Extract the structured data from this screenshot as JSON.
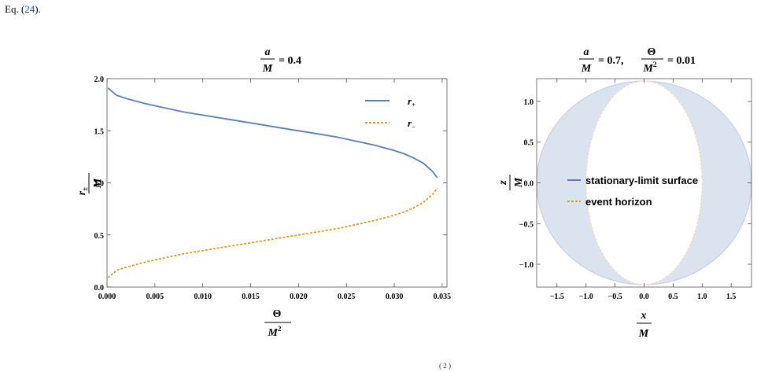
{
  "page": {
    "eq_ref_prefix": "Eq. (",
    "eq_ref_number": "24",
    "eq_ref_suffix": ").",
    "caption_fragment": "( 2    )"
  },
  "chart_data": [
    {
      "type": "line",
      "title": "a/M = 0.4",
      "title_parts": {
        "num": "a",
        "den": "M",
        "rest": "= 0.4"
      },
      "xlabel": "Θ/M²",
      "xlabel_parts": {
        "num": "Θ",
        "den": "M",
        "sup": "2"
      },
      "ylabel": "r±/M",
      "ylabel_parts": {
        "num": "r",
        "sub": "±",
        "den": "M"
      },
      "xlim": [
        0,
        0.0355
      ],
      "ylim": [
        0,
        2.0
      ],
      "x_ticks": [
        0.0,
        0.005,
        0.01,
        0.015,
        0.02,
        0.025,
        0.03,
        0.035
      ],
      "x_tick_labels": [
        "0.000",
        "0.005",
        "0.010",
        "0.015",
        "0.020",
        "0.025",
        "0.030",
        "0.035"
      ],
      "y_ticks": [
        0.0,
        0.5,
        1.0,
        1.5,
        2.0
      ],
      "y_tick_labels": [
        "0.0",
        "0.5",
        "1.0",
        "1.5",
        "2.0"
      ],
      "grid": false,
      "legend_position": "top-right",
      "series": [
        {
          "name": "r+",
          "name_parts": {
            "base": "r",
            "sub": "+"
          },
          "color": "#5b7fb6",
          "style": "solid",
          "x": [
            0.0001,
            0.001,
            0.002,
            0.004,
            0.006,
            0.008,
            0.01,
            0.012,
            0.014,
            0.016,
            0.018,
            0.02,
            0.022,
            0.024,
            0.026,
            0.028,
            0.03,
            0.031,
            0.032,
            0.033,
            0.034,
            0.0345
          ],
          "y": [
            1.91,
            1.84,
            1.81,
            1.76,
            1.72,
            1.68,
            1.65,
            1.62,
            1.59,
            1.56,
            1.53,
            1.5,
            1.47,
            1.44,
            1.4,
            1.36,
            1.31,
            1.28,
            1.24,
            1.19,
            1.11,
            1.05
          ]
        },
        {
          "name": "r−",
          "name_parts": {
            "base": "r",
            "sub": "−"
          },
          "color": "#e39b1f",
          "style": "dashed",
          "x": [
            0.0001,
            0.001,
            0.002,
            0.004,
            0.006,
            0.008,
            0.01,
            0.012,
            0.014,
            0.016,
            0.018,
            0.02,
            0.022,
            0.024,
            0.026,
            0.028,
            0.03,
            0.031,
            0.032,
            0.033,
            0.034,
            0.0345
          ],
          "y": [
            0.09,
            0.16,
            0.19,
            0.24,
            0.28,
            0.32,
            0.35,
            0.38,
            0.41,
            0.44,
            0.47,
            0.5,
            0.53,
            0.56,
            0.6,
            0.64,
            0.69,
            0.72,
            0.76,
            0.81,
            0.89,
            0.95
          ]
        }
      ]
    },
    {
      "type": "area",
      "title": "a/M = 0.7, Θ/M² = 0.01",
      "title_parts": {
        "a_num": "a",
        "a_den": "M",
        "a_rest": "= 0.7,",
        "t_num": "Θ",
        "t_den": "M",
        "t_sup": "2",
        "t_rest": "= 0.01"
      },
      "xlabel": "x/M",
      "xlabel_parts": {
        "num": "x",
        "den": "M"
      },
      "ylabel": "z/M",
      "ylabel_parts": {
        "num": "z",
        "den": "M"
      },
      "xlim": [
        -1.85,
        1.85
      ],
      "ylim": [
        -1.28,
        1.28
      ],
      "x_ticks": [
        -1.5,
        -1.0,
        -0.5,
        0.0,
        0.5,
        1.0,
        1.5
      ],
      "x_tick_labels": [
        "−1.5",
        "−1.0",
        "−0.5",
        "0.0",
        "0.5",
        "1.0",
        "1.5"
      ],
      "y_ticks": [
        -1.0,
        -0.5,
        0.0,
        0.5,
        1.0
      ],
      "y_tick_labels": [
        "−1.0",
        "−0.5",
        "0.0",
        "0.5",
        "1.0"
      ],
      "grid": false,
      "legend_position": "center",
      "fill_color": "#dbe3ef",
      "series": [
        {
          "name": "stationary-limit surface",
          "color": "#5b7fb6",
          "style": "solid",
          "semi_axes": {
            "x": 1.85,
            "z": 1.25
          }
        },
        {
          "name": "event horizon",
          "color": "#e39b1f",
          "style": "dashed",
          "semi_axes": {
            "x": 1.0,
            "z": 1.25
          }
        }
      ]
    }
  ]
}
